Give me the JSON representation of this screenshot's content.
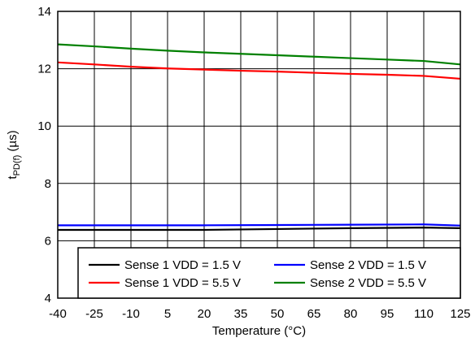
{
  "chart_data": {
    "type": "line",
    "title": "",
    "xlabel": "Temperature (°C)",
    "ylabel_main": "t",
    "ylabel_sub": "PD(f)",
    "ylabel_unit": " (µs)",
    "xlim": [
      -40,
      125
    ],
    "ylim": [
      4,
      14
    ],
    "x_ticks": [
      -40,
      -25,
      -10,
      5,
      20,
      35,
      50,
      65,
      80,
      95,
      110,
      125
    ],
    "y_ticks": [
      4,
      6,
      8,
      10,
      12,
      14
    ],
    "grid": true,
    "legend_placement": "bottom-right",
    "series": [
      {
        "name": "Sense 1 VDD = 1.5 V",
        "color": "#000000",
        "x": [
          -40,
          -10,
          20,
          50,
          80,
          110,
          125
        ],
        "y": [
          6.38,
          6.38,
          6.38,
          6.41,
          6.44,
          6.46,
          6.44
        ]
      },
      {
        "name": "Sense 2 VDD = 1.5 V",
        "color": "#0000ff",
        "x": [
          -40,
          -10,
          20,
          50,
          80,
          110,
          125
        ],
        "y": [
          6.54,
          6.54,
          6.54,
          6.55,
          6.56,
          6.57,
          6.53
        ]
      },
      {
        "name": "Sense 1 VDD = 5.5 V",
        "color": "#ff0000",
        "x": [
          -40,
          -25,
          -10,
          5,
          20,
          35,
          50,
          65,
          80,
          95,
          110,
          125
        ],
        "y": [
          12.22,
          12.15,
          12.07,
          12.01,
          11.97,
          11.93,
          11.9,
          11.86,
          11.82,
          11.79,
          11.75,
          11.65
        ]
      },
      {
        "name": "Sense 2 VDD = 5.5 V",
        "color": "#008000",
        "x": [
          -40,
          -25,
          -10,
          5,
          20,
          35,
          50,
          65,
          80,
          95,
          110,
          125
        ],
        "y": [
          12.85,
          12.78,
          12.7,
          12.63,
          12.57,
          12.52,
          12.47,
          12.42,
          12.37,
          12.32,
          12.27,
          12.15
        ]
      }
    ]
  }
}
